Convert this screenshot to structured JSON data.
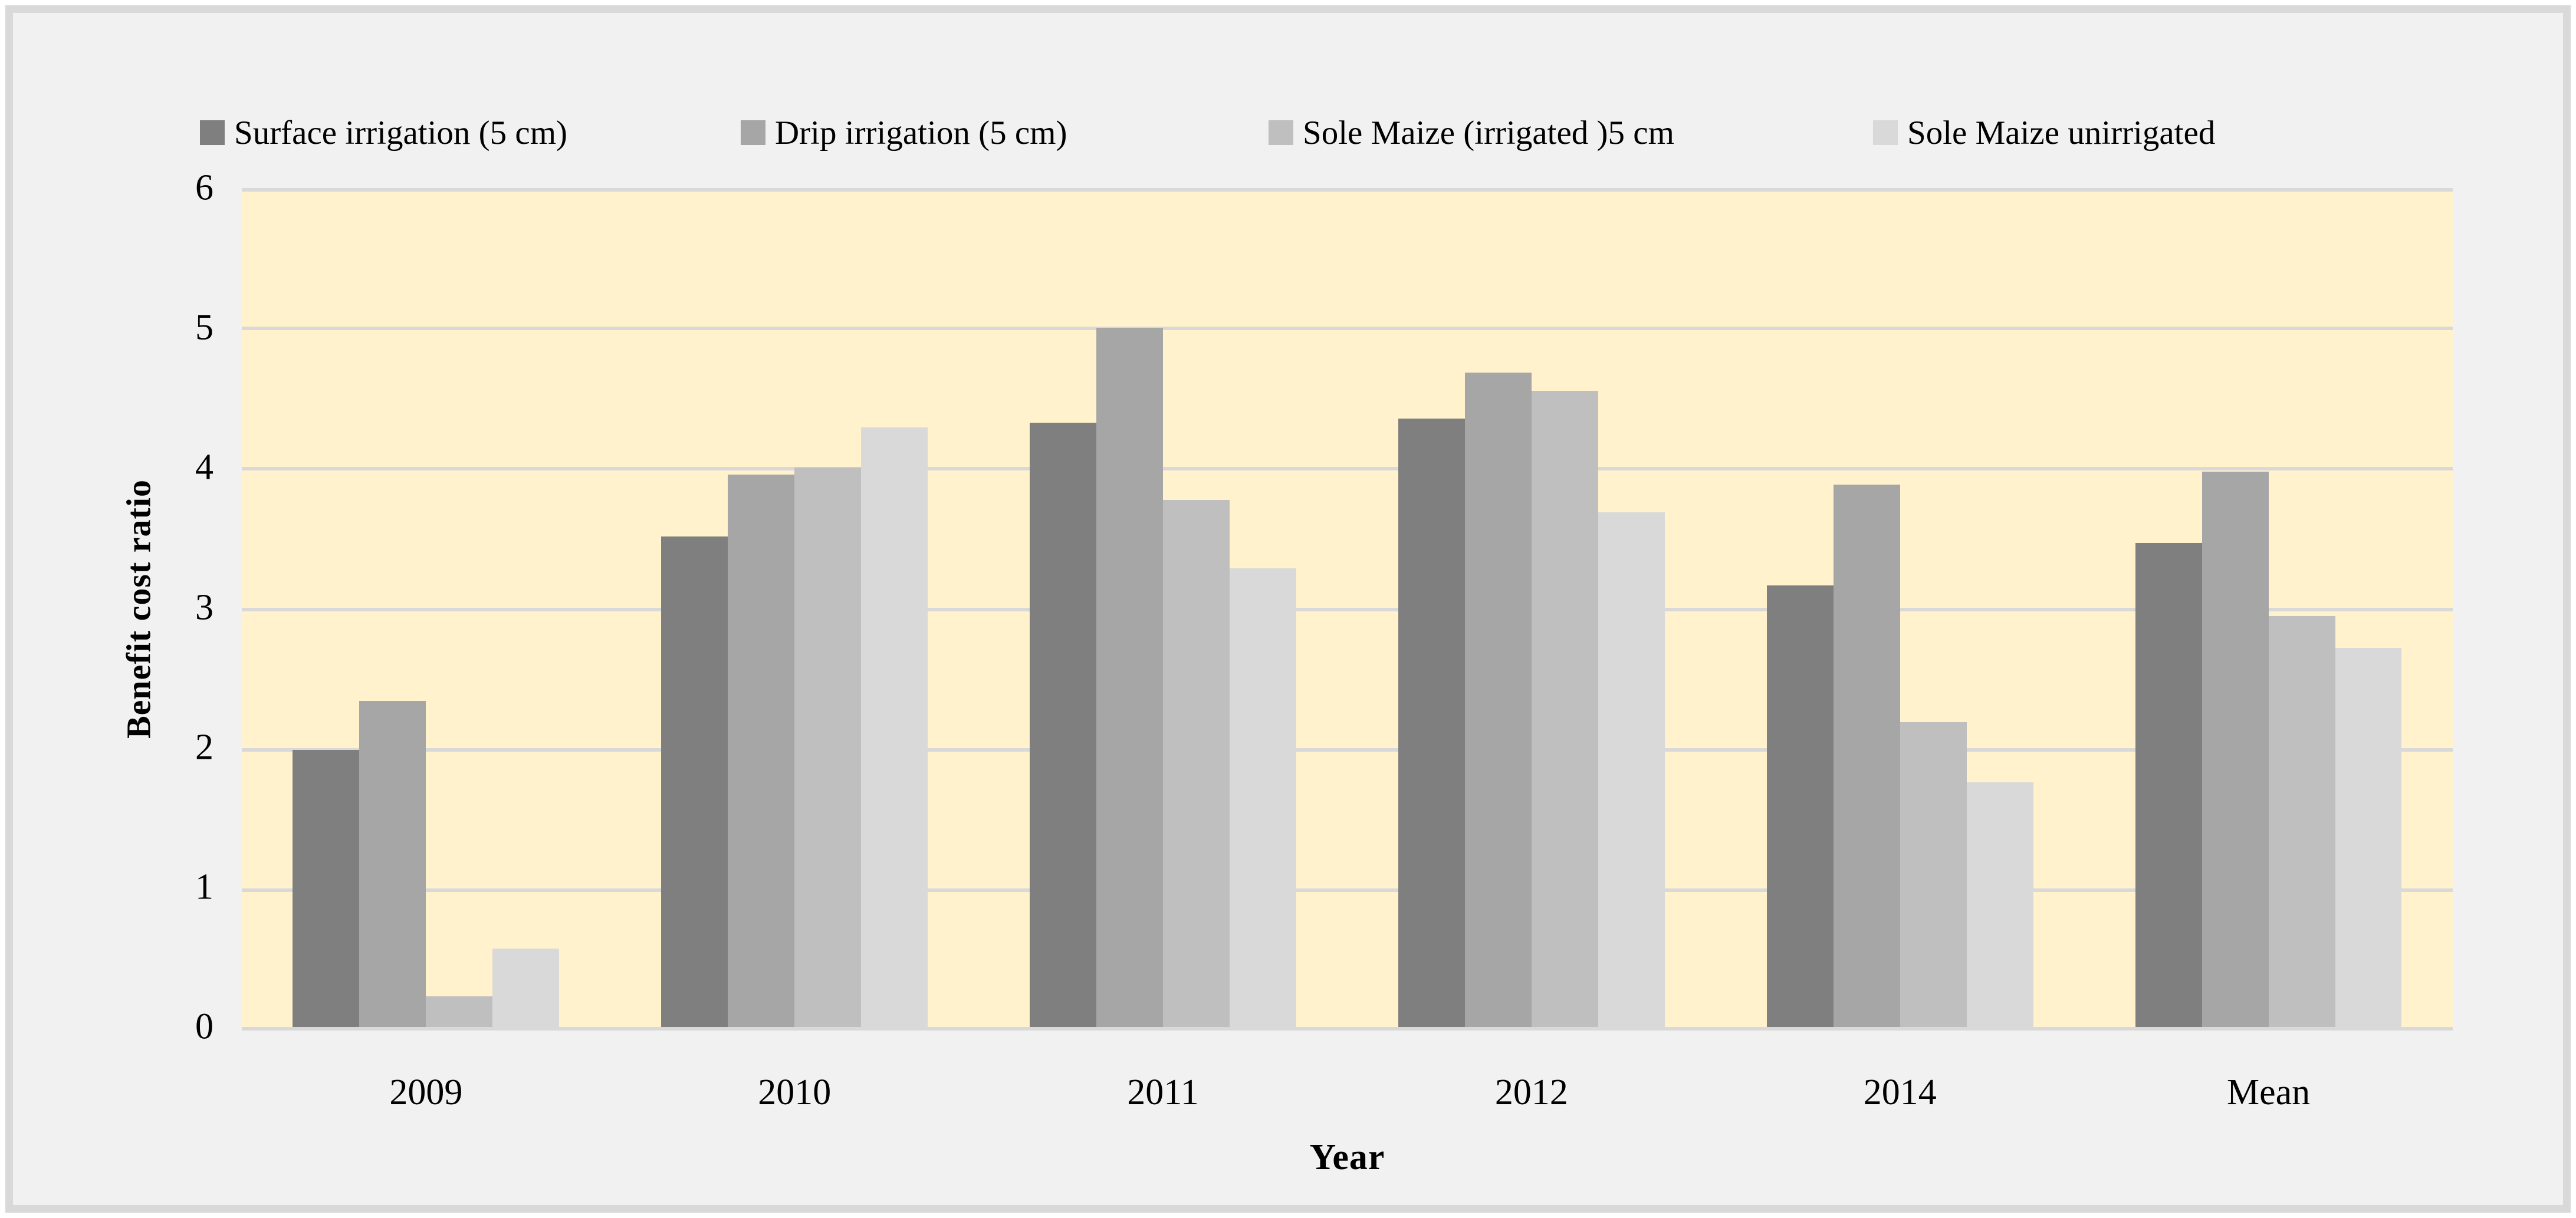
{
  "figure": {
    "y_axis_title": "Benefit cost ratio",
    "x_axis_title": "Year"
  },
  "legend": [
    {
      "label": "Surface irrigation (5 cm)",
      "color": "#7f7f7f"
    },
    {
      "label": "Drip irrigation (5 cm)",
      "color": "#a6a6a6"
    },
    {
      "label": "Sole Maize (irrigated )5 cm",
      "color": "#bfbfbf"
    },
    {
      "label": "Sole Maize unirrigated",
      "color": "#d9d9d9"
    }
  ],
  "chart_data": {
    "type": "bar",
    "categories": [
      "2009",
      "2010",
      "2011",
      "2012",
      "2014",
      "Mean"
    ],
    "series": [
      {
        "name": "Surface irrigation (5 cm)",
        "color": "#7f7f7f",
        "values": [
          1.98,
          3.51,
          4.32,
          4.35,
          3.16,
          3.46
        ]
      },
      {
        "name": "Drip irrigation (5 cm)",
        "color": "#a6a6a6",
        "values": [
          2.33,
          3.95,
          5.0,
          4.68,
          3.88,
          3.97
        ]
      },
      {
        "name": "Sole Maize (irrigated )5 cm",
        "color": "#bfbfbf",
        "values": [
          0.22,
          4.0,
          3.77,
          4.55,
          2.18,
          2.94
        ]
      },
      {
        "name": "Sole Maize unirrigated",
        "color": "#d9d9d9",
        "values": [
          0.56,
          4.29,
          3.28,
          3.68,
          1.75,
          2.71
        ]
      }
    ],
    "title": "",
    "xlabel": "Year",
    "ylabel": "Benefit cost ratio",
    "ylim": [
      0,
      6
    ],
    "yticks": [
      0,
      1,
      2,
      3,
      4,
      5,
      6
    ],
    "grid": true,
    "legend_position": "top",
    "plot_bg": "#fff2cc",
    "panel_bg": "#f1f1f1",
    "gridline_color": "#d9d9d9",
    "text_color": "#000000"
  }
}
